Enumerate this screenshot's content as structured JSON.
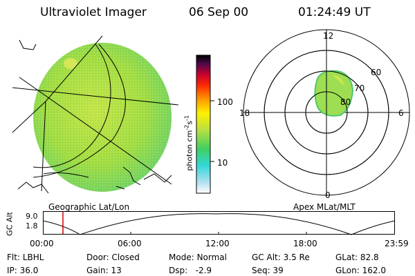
{
  "header": {
    "instrument": "Ultraviolet Imager",
    "date": "06 Sep 00",
    "time": "01:24:49 UT"
  },
  "geo_panel": {
    "label": "Geographic Lat/Lon"
  },
  "polar_panel": {
    "label": "Apex MLat/MLT",
    "mlt_labels": {
      "top": "12",
      "right": "6",
      "bottom": "0",
      "left": "18"
    },
    "lat_labels": [
      "60",
      "70",
      "80"
    ]
  },
  "colorbar": {
    "unit_prefix": "photon cm",
    "unit_exp1": "-2",
    "unit_mid": "s",
    "unit_exp2": "-1",
    "ticks": [
      "100",
      "10"
    ]
  },
  "altitude_plot": {
    "ylabel": "GC Alt",
    "y_ticks": [
      "9.0",
      "1.8"
    ],
    "x_ticks": [
      "00:00",
      "06:00",
      "12:00",
      "18:00",
      "23:59"
    ],
    "marker_color": "#cc0000"
  },
  "info": {
    "rows": [
      [
        {
          "k": "Flt:",
          "v": "LBHL"
        },
        {
          "k": "Door:",
          "v": "Closed"
        },
        {
          "k": "Mode:",
          "v": "Normal"
        },
        {
          "k": "GC Alt:",
          "v": "3.5 Re"
        },
        {
          "k": "GLat:",
          "v": "82.8"
        }
      ],
      [
        {
          "k": "IP:",
          "v": "36.0"
        },
        {
          "k": "Gain:",
          "v": "13"
        },
        {
          "k": "Dsp:",
          "v": "  -2.9"
        },
        {
          "k": "Seq:",
          "v": "39"
        },
        {
          "k": "GLon:",
          "v": "162.0"
        }
      ]
    ]
  }
}
